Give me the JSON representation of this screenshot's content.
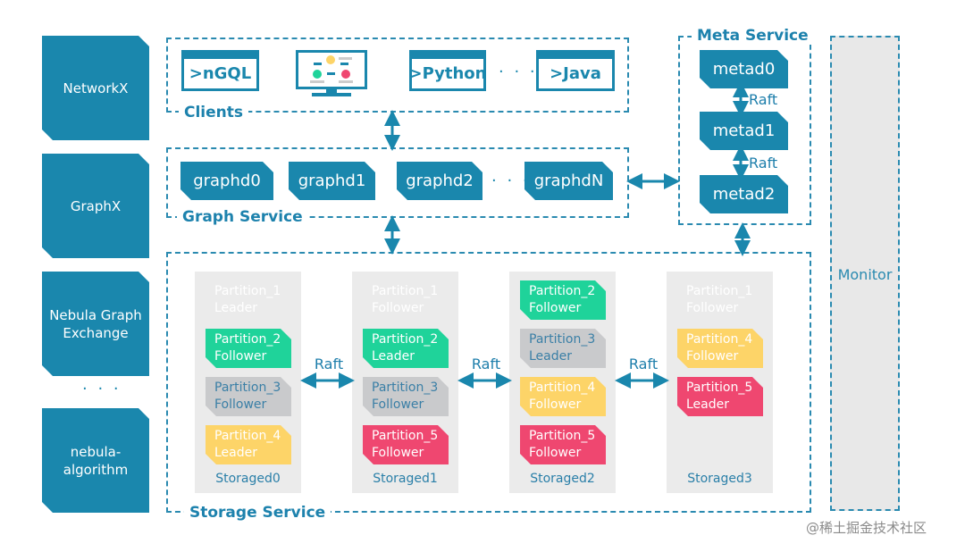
{
  "colors": {
    "primary": "#1a87ad",
    "green": "#1fd39a",
    "gray": "#c9cacc",
    "yellow": "#fdd468",
    "red": "#ef4770",
    "monitor_bg": "#e8e8e8"
  },
  "left_tools": [
    "NetworkX",
    "GraphX",
    "Nebula Graph Exchange",
    "nebula-algorithm"
  ],
  "left_ellipsis": "· · ·",
  "clients": {
    "label": "Clients",
    "items": [
      ">nGQL",
      "studio-monitor-icon",
      ">Python",
      ">Java"
    ],
    "ellipsis": "· · ·"
  },
  "graph_service": {
    "label": "Graph Service",
    "nodes": [
      "graphd0",
      "graphd1",
      "graphd2",
      "graphdN"
    ],
    "ellipsis": "· · ·"
  },
  "meta_service": {
    "label": "Meta Service",
    "nodes": [
      "metad0",
      "metad1",
      "metad2"
    ],
    "raft": "Raft"
  },
  "storage_service": {
    "label": "Storage Service",
    "raft": "Raft",
    "nodes": [
      {
        "name": "Storaged0",
        "partitions": [
          {
            "p": "Partition_1",
            "role": "Leader",
            "color": "blue"
          },
          {
            "p": "Partition_2",
            "role": "Follower",
            "color": "green"
          },
          {
            "p": "Partition_3",
            "role": "Follower",
            "color": "gray"
          },
          {
            "p": "Partition_4",
            "role": "Leader",
            "color": "yellow"
          }
        ]
      },
      {
        "name": "Storaged1",
        "partitions": [
          {
            "p": "Partition_1",
            "role": "Follower",
            "color": "blue"
          },
          {
            "p": "Partition_2",
            "role": "Leader",
            "color": "green"
          },
          {
            "p": "Partition_3",
            "role": "Follower",
            "color": "gray"
          },
          {
            "p": "Partition_5",
            "role": "Follower",
            "color": "red"
          }
        ]
      },
      {
        "name": "Storaged2",
        "partitions": [
          {
            "p": "Partition_2",
            "role": "Follower",
            "color": "green"
          },
          {
            "p": "Partition_3",
            "role": "Leader",
            "color": "gray"
          },
          {
            "p": "Partition_4",
            "role": "Follower",
            "color": "yellow"
          },
          {
            "p": "Partition_5",
            "role": "Follower",
            "color": "red"
          }
        ]
      },
      {
        "name": "Storaged3",
        "partitions": [
          {
            "p": "Partition_1",
            "role": "Follower",
            "color": "blue"
          },
          {
            "p": "Partition_4",
            "role": "Follower",
            "color": "yellow"
          },
          {
            "p": "Partition_5",
            "role": "Leader",
            "color": "red"
          }
        ]
      }
    ]
  },
  "monitor": {
    "label": "Monitor"
  },
  "watermark": "@稀土掘金技术社区"
}
